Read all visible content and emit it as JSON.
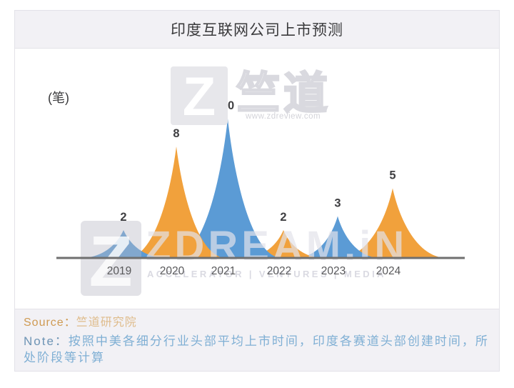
{
  "title": "印度互联网公司上市预测",
  "chart_data": {
    "type": "area",
    "title": "印度互联网公司上市预测",
    "unit_label": "(笔)",
    "categories": [
      "2019",
      "2020",
      "2021",
      "2022",
      "2023",
      "2024"
    ],
    "values": [
      2,
      8,
      10,
      2,
      3,
      5
    ],
    "series_colors": [
      "#5B9BD5",
      "#F1A13C",
      "#5B9BD5",
      "#F1A13C",
      "#5B9BD5",
      "#F1A13C"
    ],
    "ylim": [
      0,
      10
    ],
    "grid": false,
    "legend": false,
    "value_labels_shown": true,
    "xlabel": "",
    "ylabel": "(笔)"
  },
  "watermark_top": {
    "logo_letter": "Z",
    "brand": "竺道",
    "url": "www.zdreview.com"
  },
  "watermark_bottom": {
    "logo_letter": "Z",
    "brand": "ZDREAM.iN",
    "tagline": "ACCELERATOR | VENTURES | MEDIA"
  },
  "footer": {
    "source_label": "Source：",
    "source_value": "竺道研究院",
    "note_label": "Note：",
    "note_value": "按照中美各细分行业头部平均上市时间，印度各赛道头部创建时间，所处阶段等计算"
  },
  "colors": {
    "blue": "#5B9BD5",
    "orange": "#F1A13C",
    "axis": "#6f6f6f",
    "value_label": "#3f3f42",
    "year_label": "#59595b",
    "band_bg": "#f2f1f5",
    "border": "#e3e2e8",
    "source_label": "#cf9a52",
    "source_value": "#dfbc8c",
    "note_label": "#6d94b5",
    "note_text": "#7fafd4"
  }
}
